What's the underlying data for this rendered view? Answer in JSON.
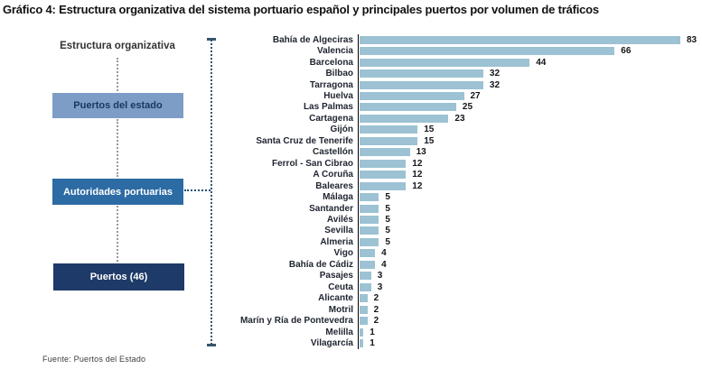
{
  "title": "Gráfico 4: Estructura organizativa del sistema portuario español y principales puertos por volumen de tráficos",
  "diagram": {
    "heading": "Estructura organizativa",
    "boxes": [
      {
        "label": "Puertos del estado",
        "bg": "#7D9DC7",
        "fg": "#1B3763"
      },
      {
        "label": "Autoridades portuarias",
        "bg": "#2D6BA4",
        "fg": "#FFFFFF"
      },
      {
        "label": "Puertos (46)",
        "bg": "#1E3A68",
        "fg": "#FFFFFF"
      }
    ]
  },
  "source": "Fuente: Puertos del Estado",
  "colors": {
    "bar_fill": "#9CC2D3",
    "axis": "#000000",
    "bracket": "#33566E",
    "connector_gray": "#9A9A9A",
    "connector_navy": "#1F4E79",
    "label_text": "#1F2430"
  },
  "chart_data": {
    "type": "bar",
    "orientation": "horizontal",
    "title": "",
    "xlabel": "",
    "ylabel": "",
    "legend": false,
    "grid": false,
    "xlim": [
      0,
      88
    ],
    "value_labels": true,
    "categories": [
      "Bahía de Algeciras",
      "Valencia",
      "Barcelona",
      "Bilbao",
      "Tarragona",
      "Huelva",
      "Las Palmas",
      "Cartagena",
      "Gijón",
      "Santa Cruz de Tenerife",
      "Castellón",
      "Ferrol - San Cibrao",
      "A Coruña",
      "Baleares",
      "Málaga",
      "Santander",
      "Avilés",
      "Sevilla",
      "Almeria",
      "Vigo",
      "Bahía de Cádiz",
      "Pasajes",
      "Ceuta",
      "Alicante",
      "Motril",
      "Marín y Ría de Pontevedra",
      "Melilla",
      "Vilagarcía"
    ],
    "values": [
      83,
      66,
      44,
      32,
      32,
      27,
      25,
      23,
      15,
      15,
      13,
      12,
      12,
      12,
      5,
      5,
      5,
      5,
      5,
      4,
      4,
      3,
      3,
      2,
      2,
      2,
      1,
      1
    ]
  }
}
